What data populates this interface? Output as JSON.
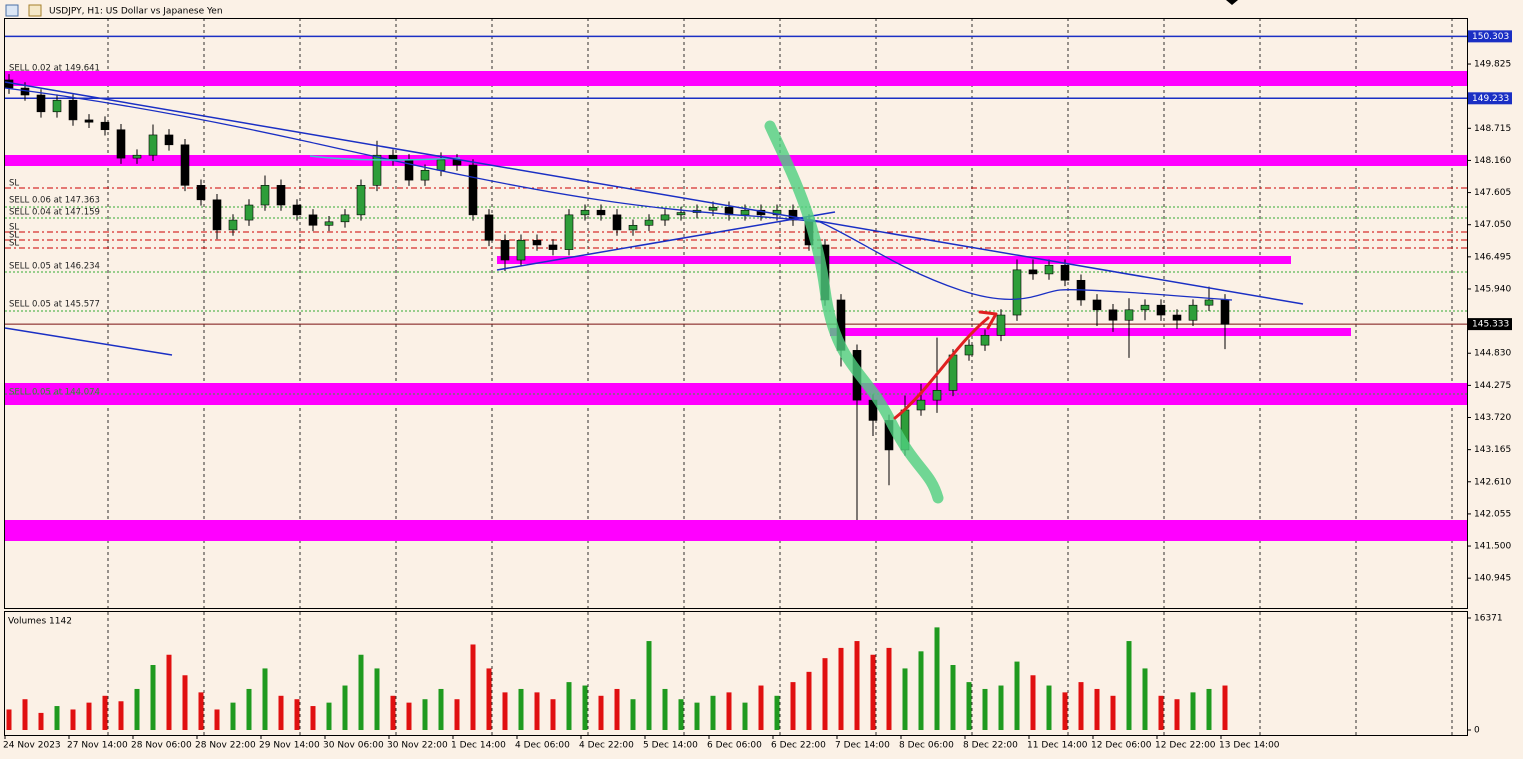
{
  "header": {
    "title": "USDJPY, H1: US Dollar vs Japanese Yen"
  },
  "orders": [
    "SELL 0.02 at 149.641",
    "SL",
    "SELL 0.06 at 147.363",
    "SELL 0.04 at 147.159",
    "SL",
    "SL",
    "SL",
    "SELL 0.05 at 146.234",
    "SELL 0.05 at 145.577",
    "SELL 0.05 at 144.074"
  ],
  "chart_data": {
    "type": "candlestick",
    "categories": [
      "24 Nov 2023",
      null,
      null,
      null,
      "27 Nov 14:00",
      null,
      null,
      null,
      "28 Nov 06:00",
      null,
      null,
      null,
      "28 Nov 22:00",
      null,
      null,
      null,
      "29 Nov 14:00",
      null,
      null,
      null,
      "30 Nov 06:00",
      null,
      null,
      null,
      "30 Nov 22:00",
      null,
      null,
      null,
      "1 Dec 14:00",
      null,
      null,
      null,
      "4 Dec 06:00",
      null,
      null,
      null,
      "4 Dec 22:00",
      null,
      null,
      null,
      "5 Dec 14:00",
      null,
      null,
      null,
      "6 Dec 06:00",
      null,
      null,
      null,
      "6 Dec 22:00",
      null,
      null,
      null,
      "7 Dec 14:00",
      null,
      null,
      null,
      "8 Dec 06:00",
      null,
      null,
      null,
      "8 Dec 22:00",
      null,
      null,
      null,
      "11 Dec 14:00",
      null,
      null,
      null,
      "12 Dec 06:00",
      null,
      null,
      null,
      "12 Dec 22:00",
      null,
      null,
      null,
      "13 Dec 14:00"
    ],
    "candles": [
      [
        149.55,
        149.65,
        149.31,
        149.41
      ],
      [
        149.41,
        149.51,
        149.19,
        149.29
      ],
      [
        149.29,
        149.39,
        148.9,
        149.0
      ],
      [
        149.0,
        149.3,
        148.9,
        149.2
      ],
      [
        149.2,
        149.3,
        148.76,
        148.86
      ],
      [
        148.86,
        148.96,
        148.72,
        148.82
      ],
      [
        148.82,
        148.92,
        148.59,
        148.69
      ],
      [
        148.69,
        148.79,
        148.1,
        148.2
      ],
      [
        148.2,
        148.35,
        148.1,
        148.25
      ],
      [
        148.25,
        148.78,
        148.15,
        148.6
      ],
      [
        148.6,
        148.7,
        148.33,
        148.43
      ],
      [
        148.43,
        148.53,
        147.63,
        147.73
      ],
      [
        147.73,
        147.83,
        147.38,
        147.48
      ],
      [
        147.48,
        147.58,
        146.8,
        146.96
      ],
      [
        146.96,
        147.23,
        146.86,
        147.13
      ],
      [
        147.13,
        147.49,
        147.03,
        147.39
      ],
      [
        147.39,
        147.9,
        147.29,
        147.73
      ],
      [
        147.73,
        147.83,
        147.29,
        147.39
      ],
      [
        147.39,
        147.49,
        147.12,
        147.22
      ],
      [
        147.22,
        147.32,
        146.94,
        147.04
      ],
      [
        147.04,
        147.2,
        146.94,
        147.1
      ],
      [
        147.1,
        147.32,
        147.0,
        147.22
      ],
      [
        147.22,
        147.83,
        147.12,
        147.73
      ],
      [
        147.73,
        148.5,
        147.63,
        148.25
      ],
      [
        148.25,
        148.35,
        148.07,
        148.17
      ],
      [
        148.17,
        148.27,
        147.72,
        147.82
      ],
      [
        147.82,
        148.09,
        147.72,
        147.99
      ],
      [
        147.99,
        148.3,
        147.89,
        148.17
      ],
      [
        148.17,
        148.27,
        147.98,
        148.08
      ],
      [
        148.08,
        148.18,
        147.12,
        147.22
      ],
      [
        147.22,
        147.32,
        146.68,
        146.78
      ],
      [
        146.78,
        146.88,
        146.25,
        146.44
      ],
      [
        146.44,
        146.88,
        146.34,
        146.78
      ],
      [
        146.78,
        146.88,
        146.6,
        146.7
      ],
      [
        146.7,
        146.8,
        146.52,
        146.62
      ],
      [
        146.62,
        147.32,
        146.52,
        147.22
      ],
      [
        147.22,
        147.4,
        147.12,
        147.3
      ],
      [
        147.3,
        147.4,
        147.12,
        147.22
      ],
      [
        147.22,
        147.32,
        146.86,
        146.96
      ],
      [
        146.96,
        147.14,
        146.86,
        147.04
      ],
      [
        147.04,
        147.23,
        146.94,
        147.13
      ],
      [
        147.13,
        147.32,
        147.03,
        147.22
      ],
      [
        147.22,
        147.36,
        147.12,
        147.26
      ],
      [
        147.26,
        147.4,
        147.16,
        147.3
      ],
      [
        147.3,
        147.45,
        147.2,
        147.35
      ],
      [
        147.35,
        147.45,
        147.12,
        147.22
      ],
      [
        147.22,
        147.4,
        147.12,
        147.3
      ],
      [
        147.3,
        147.4,
        147.12,
        147.22
      ],
      [
        147.22,
        147.4,
        147.12,
        147.3
      ],
      [
        147.3,
        147.4,
        147.03,
        147.13
      ],
      [
        147.13,
        147.23,
        146.6,
        146.7
      ],
      [
        146.7,
        146.8,
        145.65,
        145.75
      ],
      [
        145.75,
        145.85,
        144.6,
        144.88
      ],
      [
        144.88,
        144.98,
        141.95,
        144.02
      ],
      [
        144.02,
        144.12,
        143.4,
        143.67
      ],
      [
        143.67,
        143.77,
        142.55,
        143.16
      ],
      [
        143.16,
        144.1,
        143.06,
        143.85
      ],
      [
        143.85,
        144.3,
        143.75,
        144.02
      ],
      [
        144.02,
        145.1,
        143.8,
        144.19
      ],
      [
        144.19,
        144.9,
        144.09,
        144.8
      ],
      [
        144.8,
        145.07,
        144.7,
        144.97
      ],
      [
        144.97,
        145.24,
        144.87,
        145.14
      ],
      [
        145.14,
        145.59,
        145.04,
        145.49
      ],
      [
        145.49,
        146.45,
        145.39,
        146.27
      ],
      [
        146.27,
        146.45,
        146.1,
        146.2
      ],
      [
        146.2,
        146.45,
        146.1,
        146.35
      ],
      [
        146.35,
        146.45,
        145.99,
        146.09
      ],
      [
        146.09,
        146.19,
        145.65,
        145.75
      ],
      [
        145.75,
        145.85,
        145.3,
        145.58
      ],
      [
        145.58,
        145.68,
        145.2,
        145.4
      ],
      [
        145.4,
        145.78,
        144.75,
        145.58
      ],
      [
        145.58,
        145.76,
        145.4,
        145.66
      ],
      [
        145.66,
        145.76,
        145.39,
        145.49
      ],
      [
        145.49,
        145.59,
        145.25,
        145.4
      ],
      [
        145.4,
        145.76,
        145.3,
        145.66
      ],
      [
        145.66,
        145.98,
        145.56,
        145.75
      ],
      [
        145.75,
        145.85,
        144.9,
        145.33
      ]
    ],
    "ylim": [
      140.43,
      150.62
    ],
    "yticks": [
      149.825,
      148.715,
      {
        "value": 148.16,
        "label": "148.160"
      },
      147.605,
      {
        "value": 147.05,
        "label": "147.050"
      },
      146.495,
      {
        "value": 145.94,
        "label": "145.940"
      },
      {
        "value": 144.83,
        "label": "144.830"
      },
      144.275,
      {
        "value": 143.72,
        "label": "143.720"
      },
      143.165,
      {
        "value": 142.61,
        "label": "142.610"
      },
      142.055,
      {
        "value": 141.5,
        "label": "141.500"
      },
      140.945
    ],
    "levels": [
      150.303,
      149.233
    ],
    "current_price": 145.333,
    "volume": {
      "label": "Volumes 1142",
      "values": [
        3000,
        4500,
        2500,
        3500,
        3000,
        4000,
        5000,
        4200,
        6000,
        9500,
        11000,
        8000,
        5500,
        3000,
        4000,
        6000,
        9000,
        5000,
        4500,
        3500,
        4000,
        6500,
        11000,
        9000,
        5000,
        4000,
        4500,
        6000,
        4500,
        12500,
        9000,
        5500,
        6000,
        5500,
        4500,
        7000,
        6500,
        5000,
        6000,
        4500,
        13000,
        6000,
        4500,
        4000,
        5000,
        5500,
        4000,
        6500,
        5000,
        7000,
        8500,
        10500,
        12000,
        13000,
        11000,
        12000,
        9000,
        11500,
        15000,
        9500,
        7000,
        6000,
        6500,
        10000,
        8000,
        6500,
        5500,
        7000,
        6000,
        5000,
        13000,
        9000,
        5000,
        4500,
        5500,
        6000,
        6500
      ],
      "ylim": [
        0,
        16371
      ],
      "yticks": [
        16371,
        0
      ]
    }
  }
}
